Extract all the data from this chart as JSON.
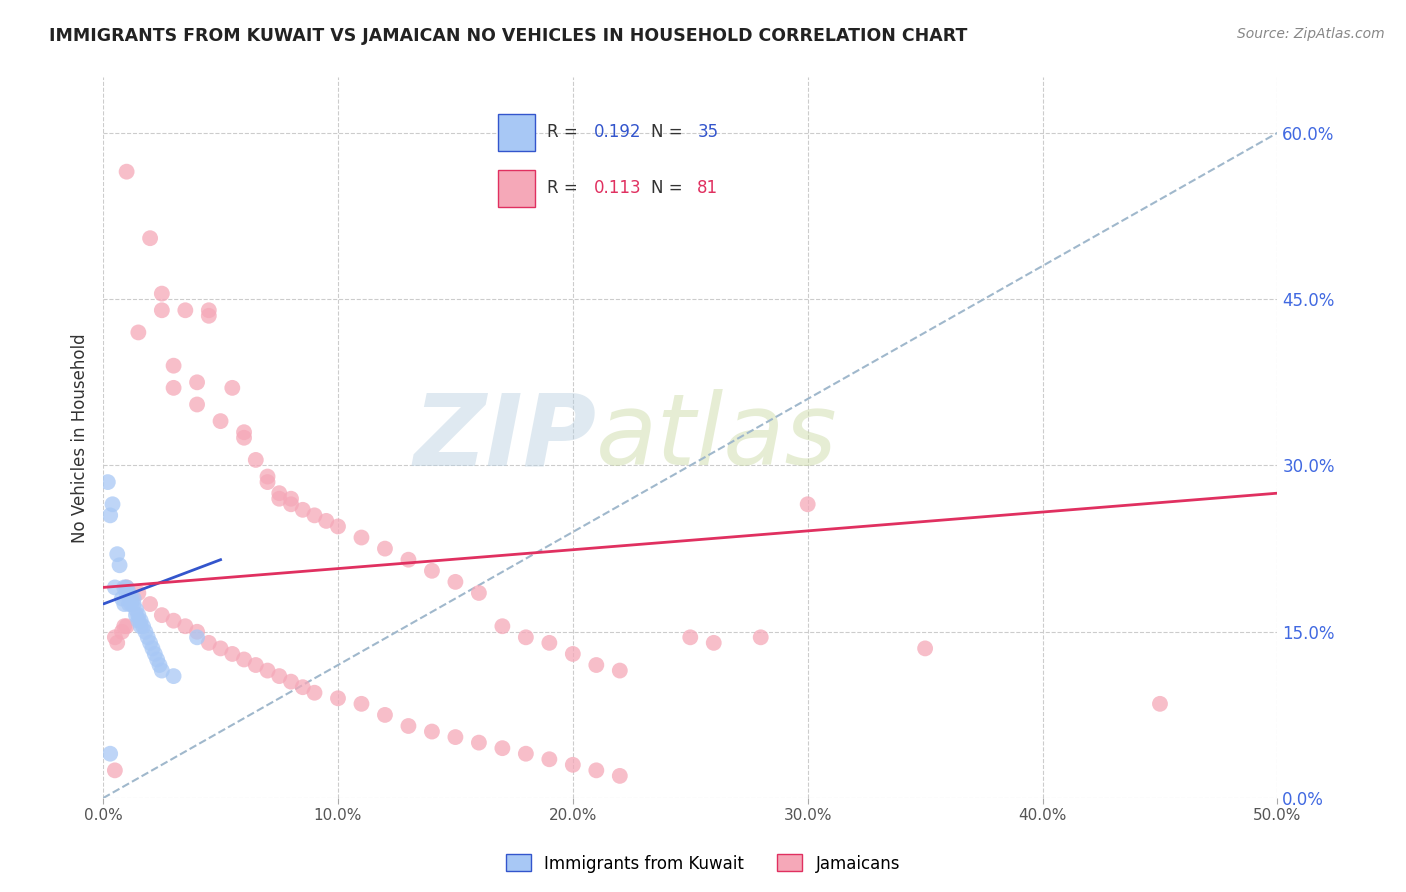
{
  "title": "IMMIGRANTS FROM KUWAIT VS JAMAICAN NO VEHICLES IN HOUSEHOLD CORRELATION CHART",
  "source": "Source: ZipAtlas.com",
  "ylabel": "No Vehicles in Household",
  "xlim": [
    0.0,
    0.5
  ],
  "ylim": [
    0.0,
    0.65
  ],
  "xticks": [
    0.0,
    0.1,
    0.2,
    0.3,
    0.4,
    0.5
  ],
  "yticks": [
    0.0,
    0.15,
    0.3,
    0.45,
    0.6
  ],
  "kuwait_R": 0.192,
  "kuwait_N": 35,
  "jamaican_R": 0.113,
  "jamaican_N": 81,
  "kuwait_color": "#a8c8f5",
  "jamaican_color": "#f5a8b8",
  "kuwait_line_color": "#3355cc",
  "jamaican_line_color": "#e03060",
  "dashed_line_color": "#a0b8cc",
  "kuwait_line": {
    "x0": 0.0,
    "y0": 0.175,
    "x1": 0.05,
    "y1": 0.215
  },
  "jamaican_line": {
    "x0": 0.0,
    "y0": 0.19,
    "x1": 0.5,
    "y1": 0.275
  },
  "dashed_line": {
    "x0": 0.0,
    "y0": 0.0,
    "x1": 0.5,
    "y1": 0.6
  },
  "kuwait_scatter": [
    [
      0.002,
      0.285
    ],
    [
      0.003,
      0.255
    ],
    [
      0.004,
      0.265
    ],
    [
      0.005,
      0.19
    ],
    [
      0.006,
      0.22
    ],
    [
      0.007,
      0.21
    ],
    [
      0.008,
      0.18
    ],
    [
      0.009,
      0.175
    ],
    [
      0.009,
      0.19
    ],
    [
      0.01,
      0.185
    ],
    [
      0.01,
      0.19
    ],
    [
      0.011,
      0.185
    ],
    [
      0.011,
      0.175
    ],
    [
      0.012,
      0.175
    ],
    [
      0.012,
      0.18
    ],
    [
      0.013,
      0.18
    ],
    [
      0.013,
      0.175
    ],
    [
      0.014,
      0.17
    ],
    [
      0.014,
      0.165
    ],
    [
      0.015,
      0.165
    ],
    [
      0.015,
      0.16
    ],
    [
      0.016,
      0.16
    ],
    [
      0.016,
      0.155
    ],
    [
      0.017,
      0.155
    ],
    [
      0.018,
      0.15
    ],
    [
      0.019,
      0.145
    ],
    [
      0.02,
      0.14
    ],
    [
      0.021,
      0.135
    ],
    [
      0.022,
      0.13
    ],
    [
      0.023,
      0.125
    ],
    [
      0.024,
      0.12
    ],
    [
      0.025,
      0.115
    ],
    [
      0.03,
      0.11
    ],
    [
      0.04,
      0.145
    ],
    [
      0.003,
      0.04
    ]
  ],
  "jamaican_scatter": [
    [
      0.01,
      0.565
    ],
    [
      0.015,
      0.42
    ],
    [
      0.02,
      0.505
    ],
    [
      0.025,
      0.44
    ],
    [
      0.025,
      0.455
    ],
    [
      0.03,
      0.37
    ],
    [
      0.03,
      0.39
    ],
    [
      0.035,
      0.44
    ],
    [
      0.04,
      0.355
    ],
    [
      0.04,
      0.375
    ],
    [
      0.045,
      0.44
    ],
    [
      0.045,
      0.435
    ],
    [
      0.05,
      0.34
    ],
    [
      0.055,
      0.37
    ],
    [
      0.06,
      0.325
    ],
    [
      0.06,
      0.33
    ],
    [
      0.065,
      0.305
    ],
    [
      0.07,
      0.29
    ],
    [
      0.07,
      0.285
    ],
    [
      0.075,
      0.275
    ],
    [
      0.075,
      0.27
    ],
    [
      0.08,
      0.265
    ],
    [
      0.08,
      0.27
    ],
    [
      0.085,
      0.26
    ],
    [
      0.09,
      0.255
    ],
    [
      0.095,
      0.25
    ],
    [
      0.1,
      0.245
    ],
    [
      0.11,
      0.235
    ],
    [
      0.12,
      0.225
    ],
    [
      0.13,
      0.215
    ],
    [
      0.14,
      0.205
    ],
    [
      0.15,
      0.195
    ],
    [
      0.16,
      0.185
    ],
    [
      0.01,
      0.19
    ],
    [
      0.015,
      0.185
    ],
    [
      0.02,
      0.175
    ],
    [
      0.025,
      0.165
    ],
    [
      0.03,
      0.16
    ],
    [
      0.035,
      0.155
    ],
    [
      0.04,
      0.15
    ],
    [
      0.045,
      0.14
    ],
    [
      0.05,
      0.135
    ],
    [
      0.055,
      0.13
    ],
    [
      0.06,
      0.125
    ],
    [
      0.065,
      0.12
    ],
    [
      0.07,
      0.115
    ],
    [
      0.075,
      0.11
    ],
    [
      0.08,
      0.105
    ],
    [
      0.085,
      0.1
    ],
    [
      0.09,
      0.095
    ],
    [
      0.1,
      0.09
    ],
    [
      0.11,
      0.085
    ],
    [
      0.12,
      0.075
    ],
    [
      0.13,
      0.065
    ],
    [
      0.14,
      0.06
    ],
    [
      0.15,
      0.055
    ],
    [
      0.16,
      0.05
    ],
    [
      0.17,
      0.045
    ],
    [
      0.18,
      0.04
    ],
    [
      0.19,
      0.035
    ],
    [
      0.2,
      0.03
    ],
    [
      0.21,
      0.025
    ],
    [
      0.22,
      0.02
    ],
    [
      0.17,
      0.155
    ],
    [
      0.18,
      0.145
    ],
    [
      0.19,
      0.14
    ],
    [
      0.2,
      0.13
    ],
    [
      0.21,
      0.12
    ],
    [
      0.22,
      0.115
    ],
    [
      0.25,
      0.145
    ],
    [
      0.26,
      0.14
    ],
    [
      0.28,
      0.145
    ],
    [
      0.3,
      0.265
    ],
    [
      0.35,
      0.135
    ],
    [
      0.45,
      0.085
    ],
    [
      0.005,
      0.025
    ],
    [
      0.005,
      0.145
    ],
    [
      0.006,
      0.14
    ],
    [
      0.008,
      0.15
    ],
    [
      0.009,
      0.155
    ],
    [
      0.01,
      0.155
    ]
  ]
}
